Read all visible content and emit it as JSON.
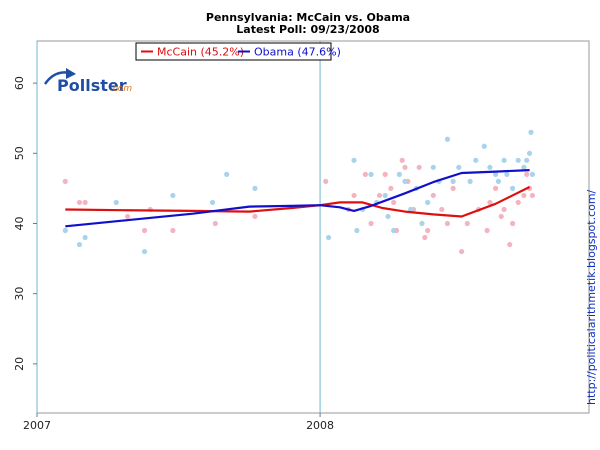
{
  "chart_data": {
    "type": "scatter",
    "title": "Pennsylvania: McCain vs. Obama",
    "subtitle": "Latest Poll: 09/23/2008",
    "logo": {
      "name": "Pollster",
      "suffix": ".com"
    },
    "watermark": "http://politicalarithmetik.blogspot.com/",
    "xlim": [
      2007.0,
      2008.95
    ],
    "ylim": [
      13,
      66
    ],
    "x_ticks": [
      {
        "value": 2007,
        "label": "2007"
      },
      {
        "value": 2008,
        "label": "2008"
      }
    ],
    "y_ticks": [
      20,
      30,
      40,
      50,
      60
    ],
    "gridlines": [
      2007,
      2008
    ],
    "legend": {
      "placement": "top-left"
    },
    "series": [
      {
        "name": "McCain",
        "legend_label": "McCain (45.2%)",
        "color": "#dd1010",
        "point_color": "#f4b3c0",
        "trend": [
          [
            2007.1,
            42.0
          ],
          [
            2007.3,
            41.9
          ],
          [
            2007.55,
            41.8
          ],
          [
            2007.75,
            41.7
          ],
          [
            2007.9,
            42.2
          ],
          [
            2008.0,
            42.6
          ],
          [
            2008.07,
            43.0
          ],
          [
            2008.15,
            43.0
          ],
          [
            2008.22,
            42.2
          ],
          [
            2008.3,
            41.7
          ],
          [
            2008.4,
            41.3
          ],
          [
            2008.5,
            41.0
          ],
          [
            2008.62,
            42.8
          ],
          [
            2008.74,
            45.2
          ]
        ],
        "points": [
          [
            2007.1,
            46
          ],
          [
            2007.15,
            43
          ],
          [
            2007.17,
            43
          ],
          [
            2007.32,
            41
          ],
          [
            2007.38,
            39
          ],
          [
            2007.4,
            42
          ],
          [
            2007.48,
            39
          ],
          [
            2007.63,
            40
          ],
          [
            2007.77,
            41
          ],
          [
            2008.02,
            46
          ],
          [
            2008.1,
            42
          ],
          [
            2008.12,
            44
          ],
          [
            2008.16,
            47
          ],
          [
            2008.18,
            40
          ],
          [
            2008.21,
            44
          ],
          [
            2008.23,
            47
          ],
          [
            2008.25,
            45
          ],
          [
            2008.26,
            43
          ],
          [
            2008.27,
            39
          ],
          [
            2008.29,
            49
          ],
          [
            2008.3,
            48
          ],
          [
            2008.31,
            46
          ],
          [
            2008.33,
            42
          ],
          [
            2008.35,
            48
          ],
          [
            2008.37,
            38
          ],
          [
            2008.38,
            39
          ],
          [
            2008.4,
            44
          ],
          [
            2008.43,
            42
          ],
          [
            2008.45,
            40
          ],
          [
            2008.47,
            45
          ],
          [
            2008.5,
            36
          ],
          [
            2008.52,
            40
          ],
          [
            2008.56,
            42
          ],
          [
            2008.59,
            39
          ],
          [
            2008.6,
            43
          ],
          [
            2008.62,
            45
          ],
          [
            2008.64,
            41
          ],
          [
            2008.65,
            42
          ],
          [
            2008.67,
            37
          ],
          [
            2008.68,
            40
          ],
          [
            2008.7,
            43
          ],
          [
            2008.72,
            44
          ],
          [
            2008.73,
            47
          ],
          [
            2008.74,
            45
          ],
          [
            2008.75,
            44
          ]
        ]
      },
      {
        "name": "Obama",
        "legend_label": "Obama (47.6%)",
        "color": "#1010cc",
        "point_color": "#a8d3ea",
        "trend": [
          [
            2007.1,
            39.6
          ],
          [
            2007.3,
            40.4
          ],
          [
            2007.55,
            41.4
          ],
          [
            2007.75,
            42.4
          ],
          [
            2007.9,
            42.5
          ],
          [
            2008.0,
            42.6
          ],
          [
            2008.07,
            42.3
          ],
          [
            2008.12,
            41.8
          ],
          [
            2008.18,
            42.5
          ],
          [
            2008.3,
            44.3
          ],
          [
            2008.4,
            45.9
          ],
          [
            2008.5,
            47.2
          ],
          [
            2008.62,
            47.4
          ],
          [
            2008.74,
            47.6
          ]
        ],
        "points": [
          [
            2007.1,
            39
          ],
          [
            2007.15,
            37
          ],
          [
            2007.17,
            38
          ],
          [
            2007.28,
            43
          ],
          [
            2007.38,
            36
          ],
          [
            2007.48,
            44
          ],
          [
            2007.62,
            43
          ],
          [
            2007.67,
            47
          ],
          [
            2007.77,
            45
          ],
          [
            2008.03,
            38
          ],
          [
            2008.12,
            49
          ],
          [
            2008.13,
            39
          ],
          [
            2008.15,
            42
          ],
          [
            2008.18,
            47
          ],
          [
            2008.2,
            43
          ],
          [
            2008.23,
            44
          ],
          [
            2008.24,
            41
          ],
          [
            2008.26,
            39
          ],
          [
            2008.28,
            47
          ],
          [
            2008.3,
            46
          ],
          [
            2008.32,
            42
          ],
          [
            2008.34,
            45
          ],
          [
            2008.36,
            40
          ],
          [
            2008.38,
            43
          ],
          [
            2008.4,
            48
          ],
          [
            2008.42,
            46
          ],
          [
            2008.45,
            52
          ],
          [
            2008.47,
            46
          ],
          [
            2008.49,
            48
          ],
          [
            2008.53,
            46
          ],
          [
            2008.55,
            49
          ],
          [
            2008.58,
            51
          ],
          [
            2008.6,
            48
          ],
          [
            2008.62,
            47
          ],
          [
            2008.63,
            46
          ],
          [
            2008.65,
            49
          ],
          [
            2008.66,
            47
          ],
          [
            2008.68,
            45
          ],
          [
            2008.7,
            49
          ],
          [
            2008.72,
            48
          ],
          [
            2008.73,
            49
          ],
          [
            2008.74,
            50
          ],
          [
            2008.745,
            53
          ],
          [
            2008.75,
            47
          ]
        ]
      }
    ]
  }
}
